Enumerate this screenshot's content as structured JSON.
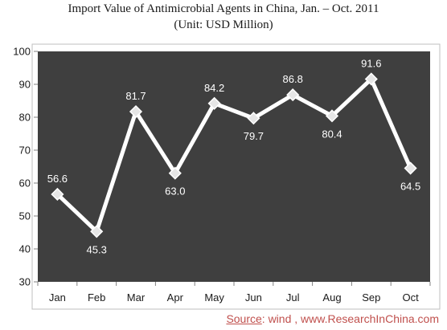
{
  "chart_data": {
    "type": "line",
    "title": "Import Value of Antimicrobial Agents in China, Jan. – Oct. 2011",
    "subtitle": "(Unit: USD Million)",
    "categories": [
      "Jan",
      "Feb",
      "Mar",
      "Apr",
      "May",
      "Jun",
      "Jul",
      "Aug",
      "Sep",
      "Oct"
    ],
    "series": [
      {
        "values": [
          56.6,
          45.3,
          81.7,
          63.0,
          84.2,
          79.7,
          86.8,
          80.4,
          91.6,
          64.5
        ]
      }
    ],
    "data_labels": [
      "56.6",
      "45.3",
      "81.7",
      "63.0",
      "84.2",
      "79.7",
      "86.8",
      "80.4",
      "91.6",
      "64.5"
    ],
    "ylim": [
      30,
      100
    ],
    "yticks": [
      30,
      40,
      50,
      60,
      70,
      80,
      90,
      100
    ],
    "grid": false,
    "legend": "none",
    "colors": {
      "plot_background": "#3f3f3f",
      "line": "#ffffff",
      "marker": "#e6e6e6",
      "source_text": "#c0504d"
    }
  },
  "source": {
    "label": "Source",
    "text": ": wind , www.ResearchInChina.com"
  }
}
